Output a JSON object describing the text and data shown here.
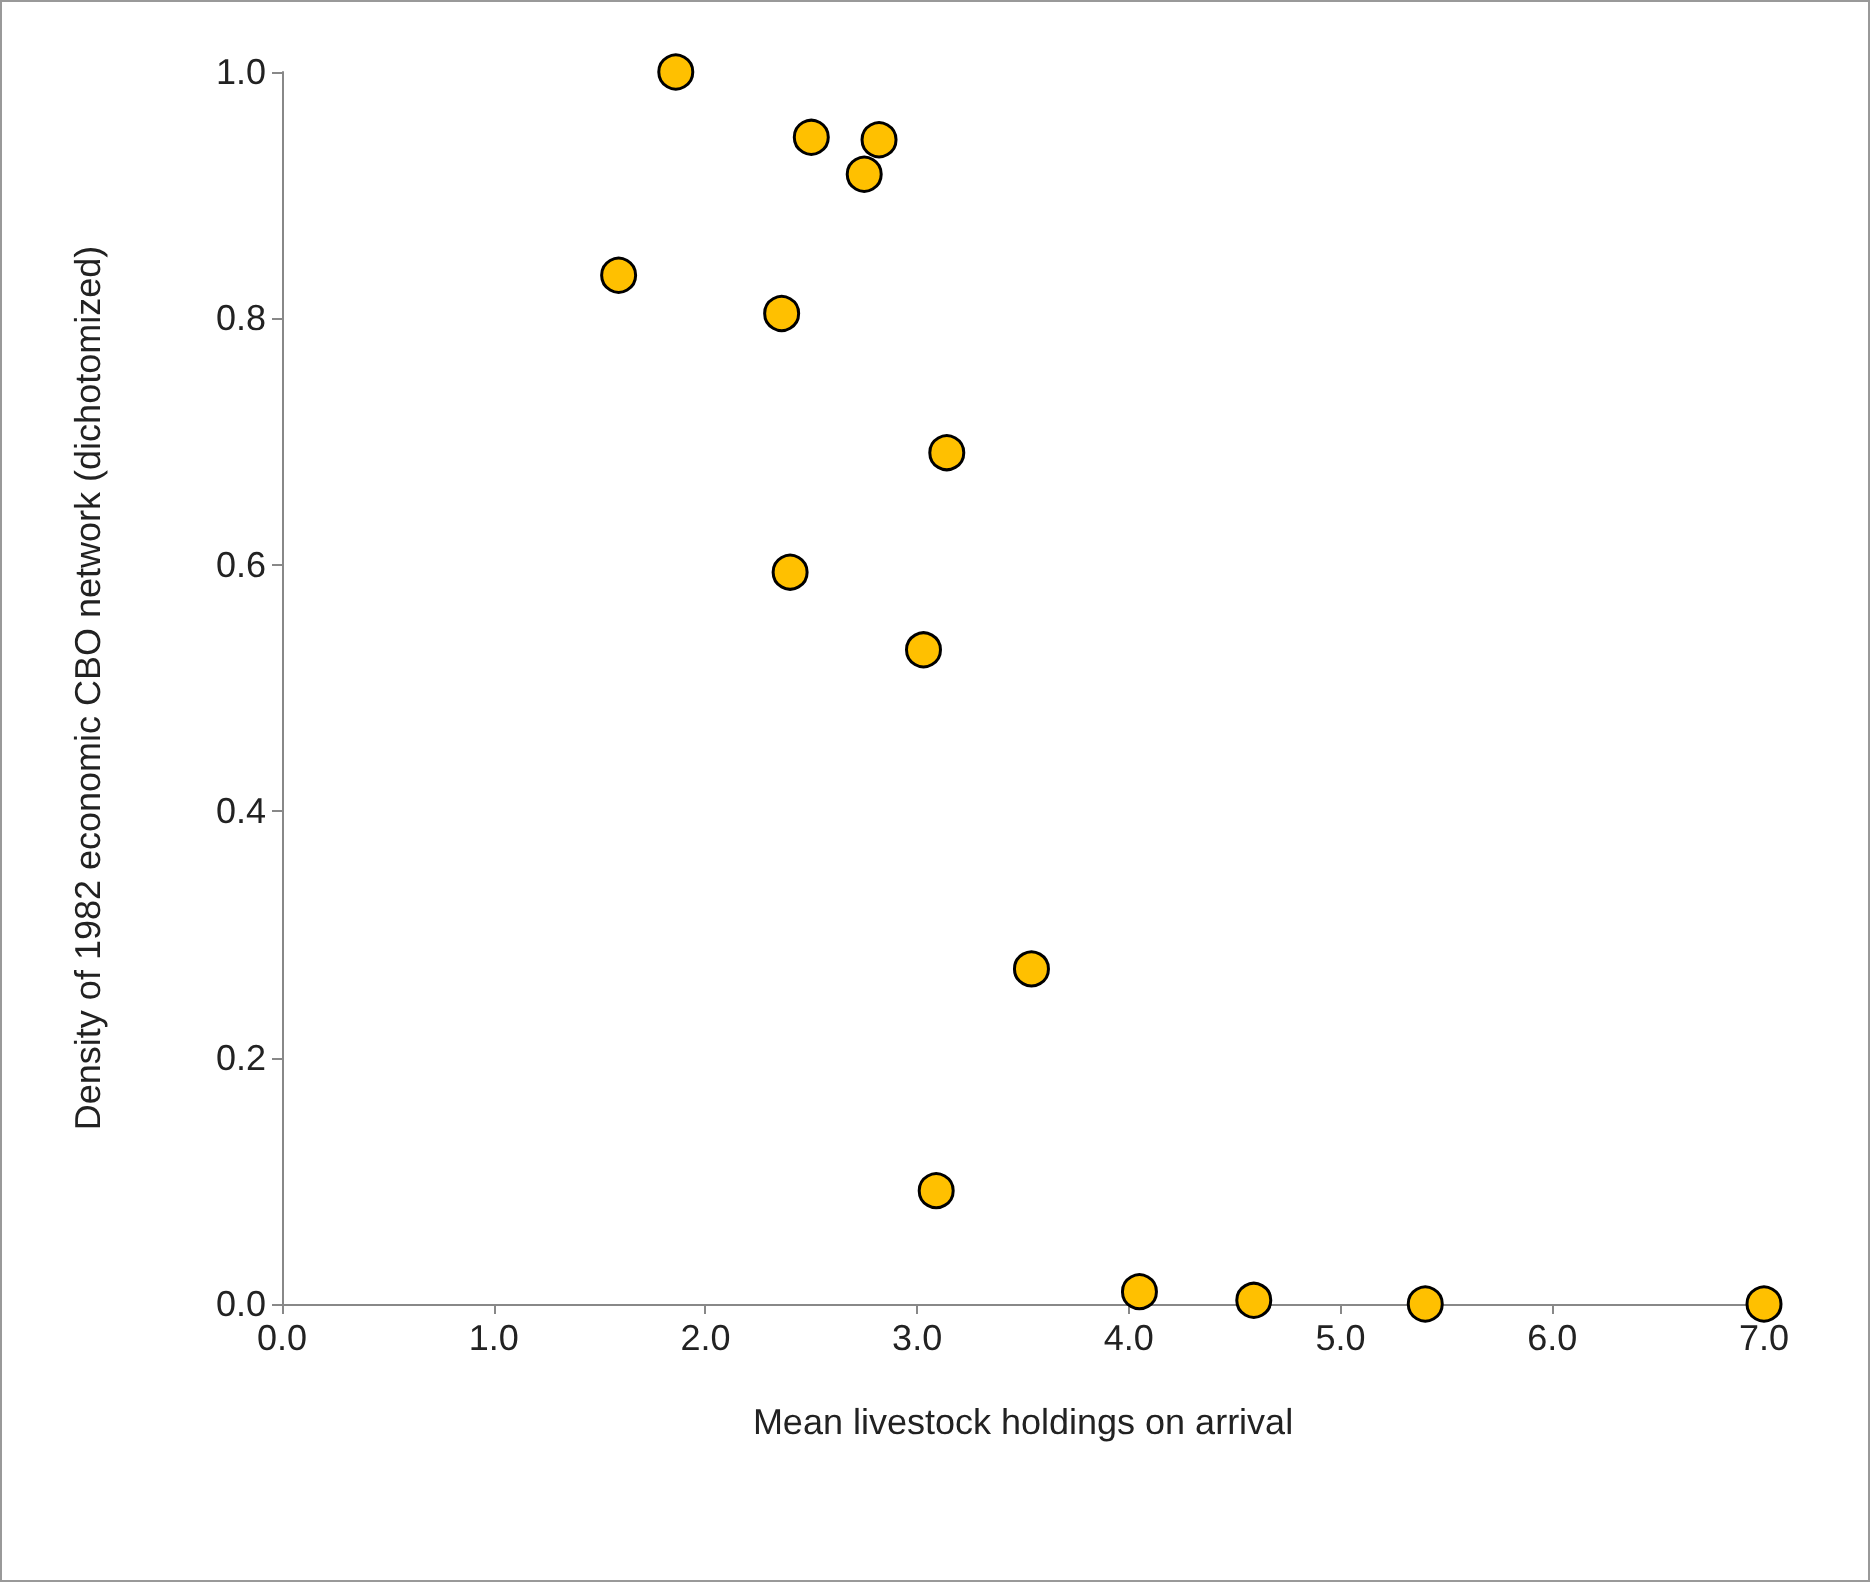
{
  "chart_data": {
    "type": "scatter",
    "xlabel": "Mean livestock holdings on arrival",
    "ylabel": "Density of 1982 economic CBO network (dichotomized)",
    "x": [
      1.86,
      2.5,
      2.82,
      2.75,
      1.59,
      2.36,
      3.14,
      2.4,
      3.03,
      3.54,
      3.09,
      4.05,
      4.59,
      5.4,
      7.0
    ],
    "series": [
      {
        "color": "#ffc000",
        "values": [
          1.0,
          0.947,
          0.945,
          0.917,
          0.835,
          0.804,
          0.691,
          0.594,
          0.531,
          0.272,
          0.092,
          0.01,
          0.003,
          0.0,
          0.0
        ]
      }
    ],
    "marker": "circle",
    "grid": false,
    "xlim": [
      0,
      7
    ],
    "xticks": [
      {
        "value": 0,
        "label": "0.0"
      },
      {
        "value": 1,
        "label": "1.0"
      },
      {
        "value": 2,
        "label": "2.0"
      },
      {
        "value": 3,
        "label": "3.0"
      },
      {
        "value": 4,
        "label": "4.0"
      },
      {
        "value": 5,
        "label": "5.0"
      },
      {
        "value": 6,
        "label": "6.0"
      },
      {
        "value": 7,
        "label": "7.0"
      }
    ],
    "ylim": [
      0,
      1
    ],
    "yticks": [
      {
        "value": 0,
        "label": "0.0"
      },
      {
        "value": 0.2,
        "label": "0.2"
      },
      {
        "value": 0.4,
        "label": "0.4"
      },
      {
        "value": 0.6,
        "label": "0.6"
      },
      {
        "value": 0.8,
        "label": "0.8"
      },
      {
        "value": 1,
        "label": "1.0"
      }
    ]
  }
}
